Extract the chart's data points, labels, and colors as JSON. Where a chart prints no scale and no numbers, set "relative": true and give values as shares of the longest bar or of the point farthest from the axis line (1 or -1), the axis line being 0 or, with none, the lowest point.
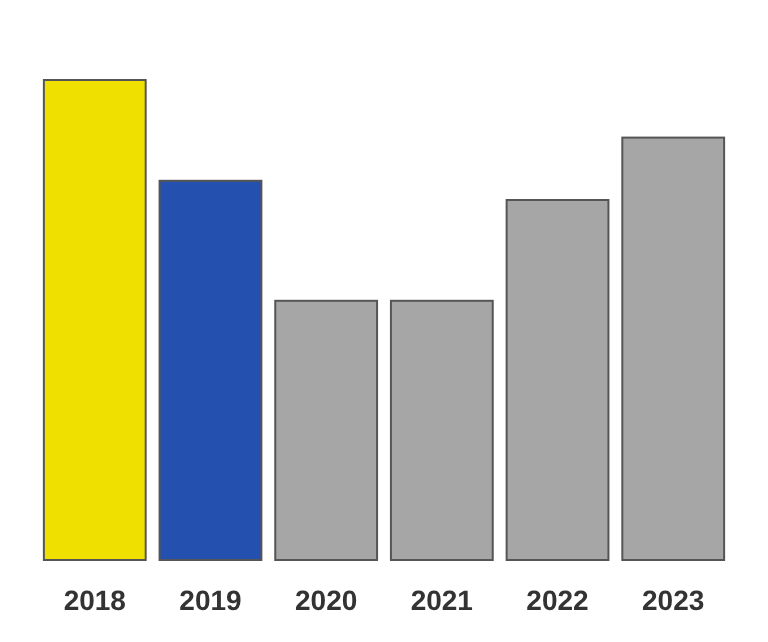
{
  "chart_data": {
    "type": "bar",
    "relative": true,
    "categories": [
      "2018",
      "2019",
      "2020",
      "2021",
      "2022",
      "2023"
    ],
    "values": [
      1,
      0.79,
      0.54,
      0.54,
      0.75,
      0.88
    ],
    "colors": [
      "#f0e000",
      "#2450b0",
      "#a6a6a6",
      "#a6a6a6",
      "#a6a6a6",
      "#a6a6a6"
    ]
  }
}
